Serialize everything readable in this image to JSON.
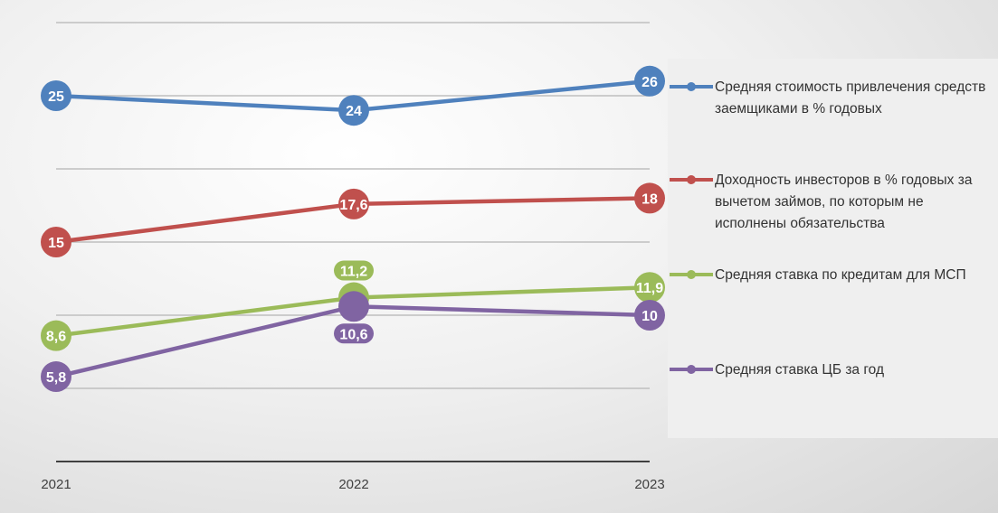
{
  "chart_data": {
    "type": "line",
    "categories": [
      "2021",
      "2022",
      "2023"
    ],
    "ylim": [
      0,
      30
    ],
    "grid": true,
    "legend_position": "right",
    "series": [
      {
        "name": "Средняя стоимость привлечения средств заемщиками в % годовых",
        "color": "#4f81bd",
        "values": [
          25,
          24,
          26
        ],
        "labels": [
          "25",
          "24",
          "26"
        ]
      },
      {
        "name": "Доходность инвесторов в % годовых за вычетом займов, по которым не исполнены обязательства",
        "color": "#c0504d",
        "values": [
          15,
          17.6,
          18
        ],
        "labels": [
          "15",
          "17,6",
          "18"
        ]
      },
      {
        "name": "Средняя ставка по кредитам для МСП",
        "color": "#9bbb59",
        "values": [
          8.6,
          11.2,
          11.9
        ],
        "labels": [
          "8,6",
          "11,2",
          "11,9"
        ]
      },
      {
        "name": "Средняя ставка ЦБ за год",
        "color": "#8064a2",
        "values": [
          5.8,
          10.6,
          10
        ],
        "labels": [
          "5,8",
          "10,6",
          "10"
        ]
      }
    ]
  }
}
